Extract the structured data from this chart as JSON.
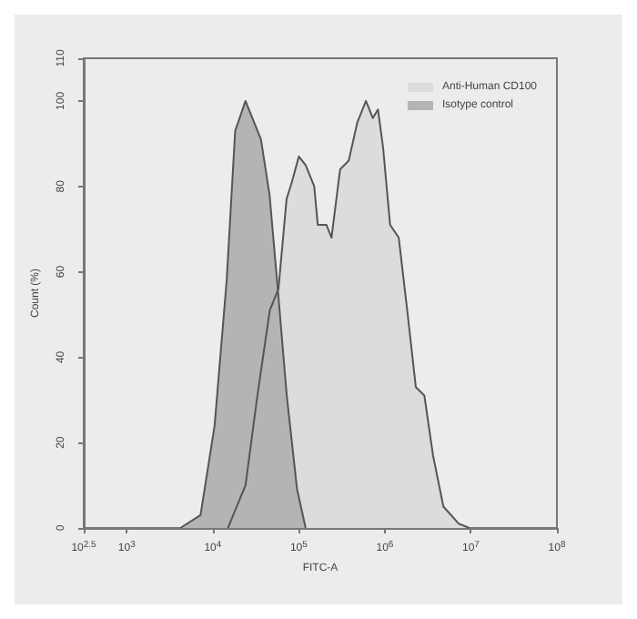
{
  "chart_data": {
    "type": "area",
    "xlabel": "FITC-A",
    "ylabel": "Count (%)",
    "log": "x",
    "xlim": [
      316,
      100000000
    ],
    "xticks": [
      {
        "value": 316,
        "label": "10$^{2.5}$"
      },
      {
        "value": 1000,
        "label": "10$^{3}$"
      },
      {
        "value": 10000,
        "label": "10$^{4}$"
      },
      {
        "value": 100000,
        "label": "10$^{5}$"
      },
      {
        "value": 1000000,
        "label": "10$^{6}$"
      },
      {
        "value": 10000000,
        "label": "10$^{7}$"
      },
      {
        "value": 100000000,
        "label": "10$^{8}$"
      }
    ],
    "ylim": [
      0,
      110
    ],
    "yticks": [
      0,
      20,
      40,
      60,
      80,
      100,
      110
    ],
    "grid": false,
    "legend": "top right",
    "series": [
      {
        "name": "Anti-Human CD100",
        "color": "#dcdcdc",
        "x": [
          15000,
          24000,
          33000,
          46000,
          58000,
          72000,
          83000,
          100000,
          120000,
          151000,
          166000,
          209000,
          240000,
          302000,
          380000,
          479000,
          603000,
          724000,
          832000,
          955000,
          1150000,
          1450000,
          1820000,
          2290000,
          2880000,
          3630000,
          4790000,
          7240000,
          9550000
        ],
        "values": [
          0,
          10,
          31,
          51,
          56,
          77,
          81,
          87,
          85,
          80,
          71,
          71,
          68,
          84,
          86,
          95,
          100,
          96,
          98,
          89,
          71,
          68,
          51,
          33,
          31,
          17,
          5,
          1,
          0
        ]
      },
      {
        "name": "Isotype control",
        "color": "#b4b4b4",
        "x": [
          4200,
          7200,
          10500,
          14500,
          18200,
          24000,
          36300,
          45700,
          57500,
          72400,
          95500,
          120000
        ],
        "values": [
          0,
          3,
          24,
          58,
          93,
          100,
          91,
          78,
          55,
          31,
          9,
          0
        ]
      }
    ]
  }
}
